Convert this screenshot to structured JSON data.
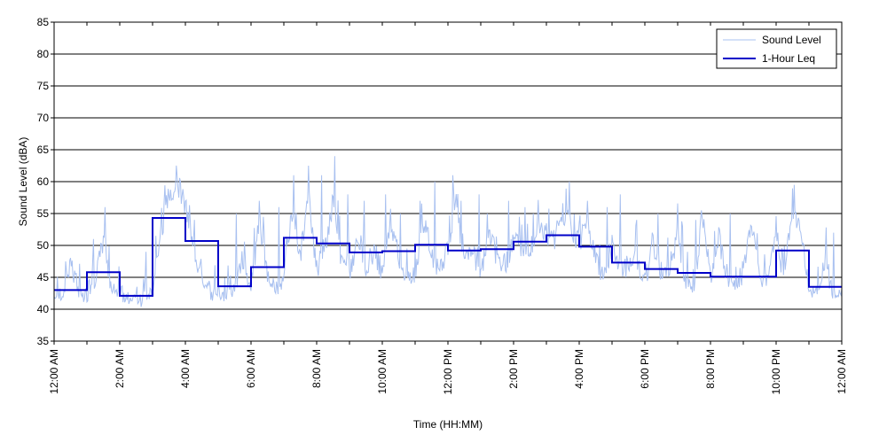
{
  "chart_data": {
    "type": "line",
    "title": "",
    "xlabel": "Time (HH:MM)",
    "ylabel": "Sound Level (dBA)",
    "ylim": [
      35,
      85
    ],
    "xlim": [
      0,
      24
    ],
    "y_ticks": [
      "35",
      "40",
      "45",
      "50",
      "55",
      "60",
      "65",
      "70",
      "75",
      "80",
      "85"
    ],
    "x_ticks": [
      "12:00 AM",
      "2:00 AM",
      "4:00 AM",
      "6:00 AM",
      "8:00 AM",
      "10:00 AM",
      "12:00 PM",
      "2:00 PM",
      "4:00 PM",
      "6:00 PM",
      "8:00 PM",
      "10:00 PM",
      "12:00 AM"
    ],
    "grid": "horizontal",
    "legend_position": "top-right",
    "series": [
      {
        "name": "Sound Level",
        "color": "#a8c0f0",
        "x": [
          0,
          0.25,
          0.5,
          0.75,
          1,
          1.25,
          1.5,
          1.75,
          2,
          2.25,
          2.5,
          2.75,
          3,
          3.25,
          3.5,
          3.75,
          4,
          4.25,
          4.5,
          4.75,
          5,
          5.25,
          5.5,
          5.75,
          6,
          6.25,
          6.5,
          6.75,
          7,
          7.25,
          7.5,
          7.75,
          8,
          8.25,
          8.5,
          8.75,
          9,
          9.25,
          9.5,
          9.75,
          10,
          10.25,
          10.5,
          10.75,
          11,
          11.25,
          11.5,
          11.75,
          12,
          12.25,
          12.5,
          12.75,
          13,
          13.25,
          13.5,
          13.75,
          14,
          14.25,
          14.5,
          14.75,
          15,
          15.25,
          15.5,
          15.75,
          16,
          16.25,
          16.5,
          16.75,
          17,
          17.25,
          17.5,
          17.75,
          18,
          18.25,
          18.5,
          18.75,
          19,
          19.25,
          19.5,
          19.75,
          20,
          20.25,
          20.5,
          20.75,
          21,
          21.25,
          21.5,
          21.75,
          22,
          22.25,
          22.5,
          22.75,
          23,
          23.25,
          23.5,
          23.75,
          24
        ],
        "y": [
          42,
          41.5,
          47.5,
          42,
          41.8,
          44,
          51,
          43,
          42.5,
          41,
          40.8,
          41.5,
          43,
          52,
          58,
          60,
          56,
          50,
          44,
          42,
          42.5,
          42,
          43,
          48,
          43,
          54,
          45,
          42.5,
          45,
          55,
          48,
          58,
          46,
          50,
          56,
          48,
          45,
          52,
          47,
          49,
          46,
          54,
          48,
          45,
          46,
          53,
          48,
          46,
          50,
          57,
          47,
          49,
          45,
          52,
          48,
          47,
          51,
          50,
          49,
          54,
          52,
          51,
          55,
          53,
          50,
          54,
          48,
          45,
          50,
          47,
          46,
          48,
          44,
          50,
          46,
          45,
          52,
          44,
          43,
          55,
          45,
          52,
          44,
          43,
          46,
          54,
          45,
          44,
          51,
          45,
          56,
          52,
          43,
          42,
          48,
          41.5,
          42
        ],
        "spikes": [
          [
            0.35,
            47.5
          ],
          [
            1.2,
            51
          ],
          [
            1.55,
            56
          ],
          [
            2.8,
            49
          ],
          [
            3.1,
            51.5
          ],
          [
            3.85,
            60
          ],
          [
            5.55,
            55
          ],
          [
            6.25,
            57
          ],
          [
            6.85,
            56
          ],
          [
            7.3,
            61
          ],
          [
            7.75,
            62.5
          ],
          [
            8.15,
            61
          ],
          [
            8.55,
            64
          ],
          [
            8.95,
            58
          ],
          [
            9.45,
            57
          ],
          [
            10.1,
            58
          ],
          [
            10.55,
            55
          ],
          [
            11.15,
            57
          ],
          [
            11.6,
            60
          ],
          [
            12.15,
            61
          ],
          [
            12.4,
            57
          ],
          [
            12.95,
            58
          ],
          [
            13.2,
            55
          ],
          [
            13.85,
            57
          ],
          [
            14.35,
            56
          ],
          [
            14.6,
            55
          ],
          [
            15.7,
            60
          ],
          [
            16.25,
            57
          ],
          [
            16.85,
            56
          ],
          [
            17.25,
            58
          ],
          [
            17.75,
            54
          ],
          [
            18.4,
            55
          ],
          [
            19.15,
            53
          ],
          [
            19.55,
            54
          ],
          [
            20.6,
            55
          ],
          [
            21.25,
            53
          ],
          [
            22.05,
            52
          ],
          [
            22.55,
            59.5
          ],
          [
            22.75,
            52
          ],
          [
            23.75,
            52
          ]
        ]
      },
      {
        "name": "1-Hour Leq",
        "color": "#0000c8",
        "type": "step",
        "x": [
          0,
          1,
          2,
          3,
          4,
          5,
          6,
          7,
          8,
          9,
          10,
          11,
          12,
          13,
          14,
          15,
          16,
          17,
          18,
          19,
          20,
          21,
          22,
          23
        ],
        "y": [
          43,
          45.8,
          42.1,
          54.3,
          50.7,
          43.6,
          46.6,
          51.2,
          50.3,
          48.9,
          49.1,
          50.1,
          49.2,
          49.4,
          50.6,
          51.6,
          49.8,
          47.3,
          46.3,
          45.7,
          45.1,
          45.1,
          49.2,
          43.5
        ]
      }
    ]
  }
}
